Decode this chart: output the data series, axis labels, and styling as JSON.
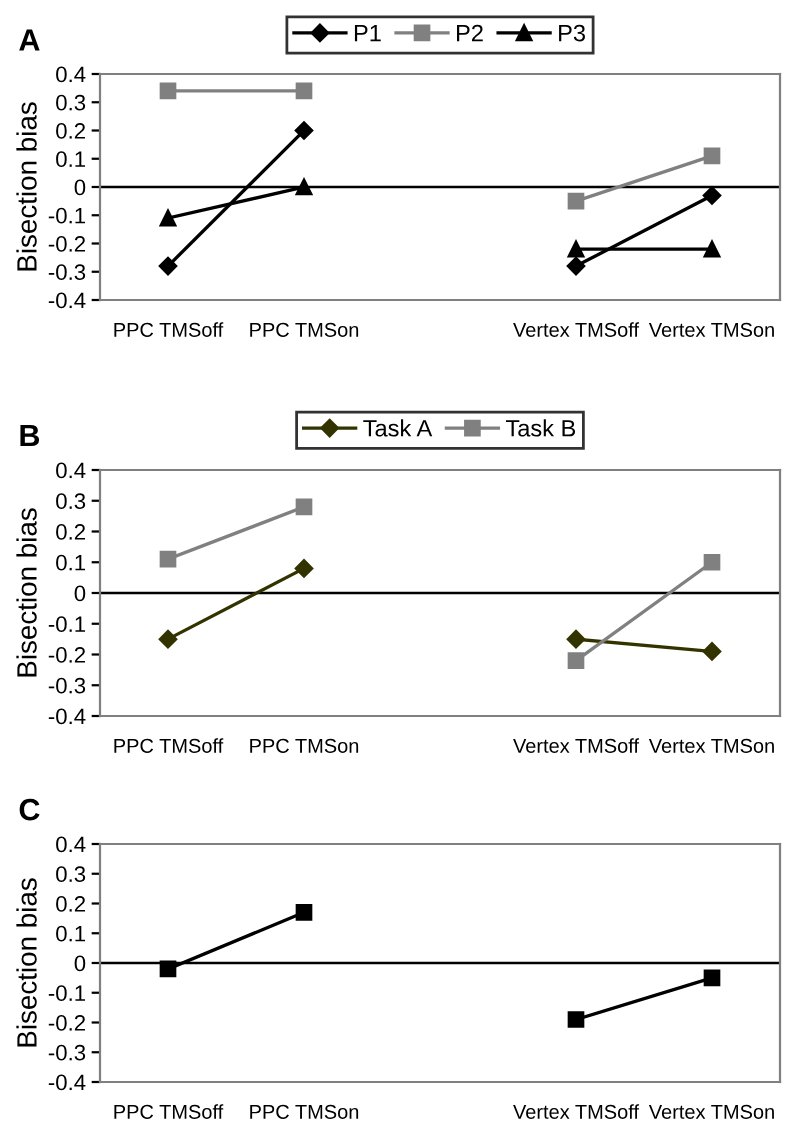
{
  "chart_data": [
    {
      "type": "line",
      "title": "A",
      "ylabel": "Bisection bias",
      "categories": [
        null,
        "PPC TMSoff",
        null,
        "PPC TMSon",
        null,
        null,
        null,
        "Vertex TMSoff",
        null,
        "Vertex TMSon",
        null
      ],
      "ylim": [
        -0.4,
        0.4
      ],
      "yticks": [
        -0.4,
        -0.3,
        -0.2,
        -0.1,
        0,
        0.1,
        0.2,
        0.3,
        0.4
      ],
      "ref_lines": [
        {
          "axis": "y",
          "value": 0
        }
      ],
      "legend": "top",
      "grid": false,
      "series": [
        {
          "name": "P1",
          "color": "#000000",
          "marker": "diamond",
          "values": [
            null,
            -0.28,
            null,
            0.2,
            null,
            null,
            null,
            null,
            null,
            null,
            null
          ]
        },
        {
          "color": "#000000",
          "marker": "diamond",
          "values": [
            null,
            null,
            null,
            null,
            null,
            null,
            null,
            -0.28,
            null,
            -0.03,
            null
          ]
        },
        {
          "name": "P2",
          "color": "#808080",
          "marker": "square",
          "values": [
            null,
            0.34,
            null,
            0.34,
            null,
            null,
            null,
            null,
            null,
            null,
            null
          ]
        },
        {
          "color": "#808080",
          "marker": "square",
          "values": [
            null,
            null,
            null,
            null,
            null,
            null,
            null,
            -0.05,
            null,
            0.11,
            null
          ]
        },
        {
          "name": "P3",
          "color": "#000000",
          "marker": "triangle",
          "values": [
            null,
            -0.11,
            null,
            0.0,
            null,
            null,
            null,
            null,
            null,
            null,
            null
          ]
        },
        {
          "color": "#000000",
          "marker": "triangle",
          "values": [
            null,
            null,
            null,
            null,
            null,
            null,
            null,
            -0.22,
            null,
            -0.22,
            null
          ]
        }
      ]
    },
    {
      "type": "line",
      "title": "B",
      "ylabel": "Bisection bias",
      "categories": [
        null,
        "PPC TMSoff",
        null,
        "PPC TMSon",
        null,
        null,
        null,
        "Vertex TMSoff",
        null,
        "Vertex TMSon",
        null
      ],
      "ylim": [
        -0.4,
        0.4
      ],
      "yticks": [
        -0.4,
        -0.3,
        -0.2,
        -0.1,
        0,
        0.1,
        0.2,
        0.3,
        0.4
      ],
      "ref_lines": [
        {
          "axis": "y",
          "value": 0
        }
      ],
      "legend": "top",
      "grid": false,
      "series": [
        {
          "name": "Task A",
          "color": "#333300",
          "marker": "diamond",
          "values": [
            null,
            -0.15,
            null,
            0.08,
            null,
            null,
            null,
            null,
            null,
            null,
            null
          ]
        },
        {
          "color": "#333300",
          "marker": "diamond",
          "values": [
            null,
            null,
            null,
            null,
            null,
            null,
            null,
            -0.15,
            null,
            -0.19,
            null
          ]
        },
        {
          "name": "Task B",
          "color": "#808080",
          "marker": "square",
          "values": [
            null,
            0.11,
            null,
            0.28,
            null,
            null,
            null,
            null,
            null,
            null,
            null
          ]
        },
        {
          "color": "#808080",
          "marker": "square",
          "values": [
            null,
            null,
            null,
            null,
            null,
            null,
            null,
            -0.22,
            null,
            0.1,
            null
          ]
        }
      ]
    },
    {
      "type": "line",
      "title": "C",
      "ylabel": "Bisection bias",
      "categories": [
        null,
        "PPC TMSoff",
        null,
        "PPC TMSon",
        null,
        null,
        null,
        "Vertex TMSoff",
        null,
        "Vertex TMSon",
        null
      ],
      "ylim": [
        -0.4,
        0.4
      ],
      "yticks": [
        -0.4,
        -0.3,
        -0.2,
        -0.1,
        0,
        0.1,
        0.2,
        0.3,
        0.4
      ],
      "ref_lines": [
        {
          "axis": "y",
          "value": 0
        }
      ],
      "legend": false,
      "grid": false,
      "series": [
        {
          "color": "#000000",
          "marker": "square",
          "values": [
            null,
            -0.02,
            null,
            0.17,
            null,
            null,
            null,
            null,
            null,
            null,
            null
          ]
        },
        {
          "color": "#000000",
          "marker": "square",
          "values": [
            null,
            null,
            null,
            null,
            null,
            null,
            null,
            -0.19,
            null,
            -0.05,
            null
          ]
        }
      ]
    }
  ]
}
